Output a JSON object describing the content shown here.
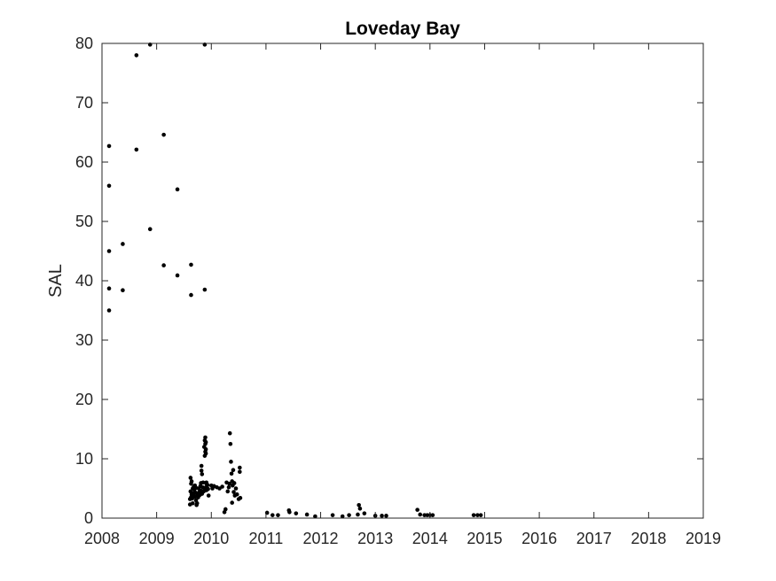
{
  "chart_data": {
    "type": "scatter",
    "title": "Loveday Bay",
    "xlabel": "",
    "ylabel": "SAL",
    "xlim": [
      2008,
      2019
    ],
    "ylim": [
      0,
      80
    ],
    "x_ticks": [
      "2008",
      "2009",
      "2010",
      "2011",
      "2012",
      "2013",
      "2014",
      "2015",
      "2016",
      "2017",
      "2018",
      "2019"
    ],
    "y_ticks": [
      "0",
      "10",
      "20",
      "30",
      "40",
      "50",
      "60",
      "70",
      "80"
    ],
    "grid": false,
    "marker_color": "#000000",
    "series": [
      {
        "x": [
          2008.13,
          2008.13,
          2008.13,
          2008.13,
          2008.13,
          2008.38,
          2008.38,
          2008.63,
          2008.63,
          2008.88,
          2008.88,
          2009.13,
          2009.13,
          2009.38,
          2009.38,
          2009.63,
          2009.63,
          2009.88,
          2009.88,
          2009.61,
          2009.61,
          2009.62,
          2009.62,
          2009.63,
          2009.63,
          2009.64,
          2009.64,
          2009.65,
          2009.66,
          2009.66,
          2009.67,
          2009.68,
          2009.68,
          2009.69,
          2009.7,
          2009.7,
          2009.71,
          2009.72,
          2009.72,
          2009.73,
          2009.74,
          2009.75,
          2009.76,
          2009.77,
          2009.78,
          2009.79,
          2009.8,
          2009.81,
          2009.81,
          2009.82,
          2009.82,
          2009.83,
          2009.83,
          2009.84,
          2009.85,
          2009.86,
          2009.87,
          2009.87,
          2009.88,
          2009.88,
          2009.89,
          2009.89,
          2009.89,
          2009.9,
          2009.9,
          2009.9,
          2009.91,
          2009.91,
          2009.91,
          2009.92,
          2009.92,
          2009.93,
          2009.94,
          2009.95,
          2010.0,
          2010.02,
          2010.05,
          2010.1,
          2010.15,
          2010.2,
          2010.24,
          2010.26,
          2010.28,
          2010.3,
          2010.32,
          2010.33,
          2010.34,
          2010.35,
          2010.36,
          2010.37,
          2010.38,
          2010.38,
          2010.39,
          2010.4,
          2010.41,
          2010.42,
          2010.43,
          2010.45,
          2010.47,
          2010.5,
          2010.52,
          2010.52,
          2010.53,
          2011.02,
          2011.12,
          2011.22,
          2011.42,
          2011.43,
          2011.55,
          2011.75,
          2011.9,
          2012.22,
          2012.4,
          2012.52,
          2012.68,
          2012.7,
          2012.72,
          2012.8,
          2013.0,
          2013.12,
          2013.2,
          2013.77,
          2013.82,
          2013.9,
          2013.95,
          2014.0,
          2014.05,
          2014.8,
          2014.87,
          2014.93
        ],
        "y": [
          62.7,
          56,
          45,
          38.7,
          35,
          46.2,
          38.4,
          78,
          62.1,
          79.8,
          48.7,
          64.6,
          42.6,
          55.4,
          40.9,
          42.7,
          37.6,
          79.8,
          38.5,
          2.3,
          3.2,
          4.5,
          6.8,
          3.5,
          5.8,
          4.0,
          6.2,
          3.3,
          2.5,
          5.0,
          4.2,
          3.8,
          5.3,
          4.8,
          3.6,
          5.5,
          4.3,
          3.0,
          5.1,
          2.2,
          2.5,
          4.0,
          3.5,
          5.0,
          4.4,
          3.9,
          5.4,
          4.6,
          5.9,
          8.0,
          8.8,
          4.1,
          7.4,
          5.2,
          6.0,
          4.5,
          5.1,
          12.0,
          10.5,
          13.1,
          11.2,
          12.5,
          13.6,
          10.9,
          11.6,
          12.8,
          5.8,
          4.7,
          6.0,
          5.4,
          5.0,
          5.6,
          4.9,
          3.8,
          5.5,
          5.0,
          5.4,
          5.2,
          5.0,
          5.3,
          1.0,
          1.5,
          6.0,
          4.5,
          5.2,
          5.8,
          14.3,
          12.5,
          9.5,
          7.5,
          6.2,
          2.6,
          5.5,
          8.1,
          4.4,
          5.9,
          3.8,
          5.0,
          4.0,
          3.2,
          7.8,
          8.5,
          3.4,
          0.9,
          0.5,
          0.5,
          1.3,
          1.0,
          0.8,
          0.6,
          0.3,
          0.5,
          0.3,
          0.5,
          0.6,
          2.2,
          1.6,
          0.8,
          0.4,
          0.4,
          0.4,
          1.4,
          0.6,
          0.5,
          0.5,
          0.5,
          0.5,
          0.5,
          0.5,
          0.5
        ]
      }
    ]
  }
}
